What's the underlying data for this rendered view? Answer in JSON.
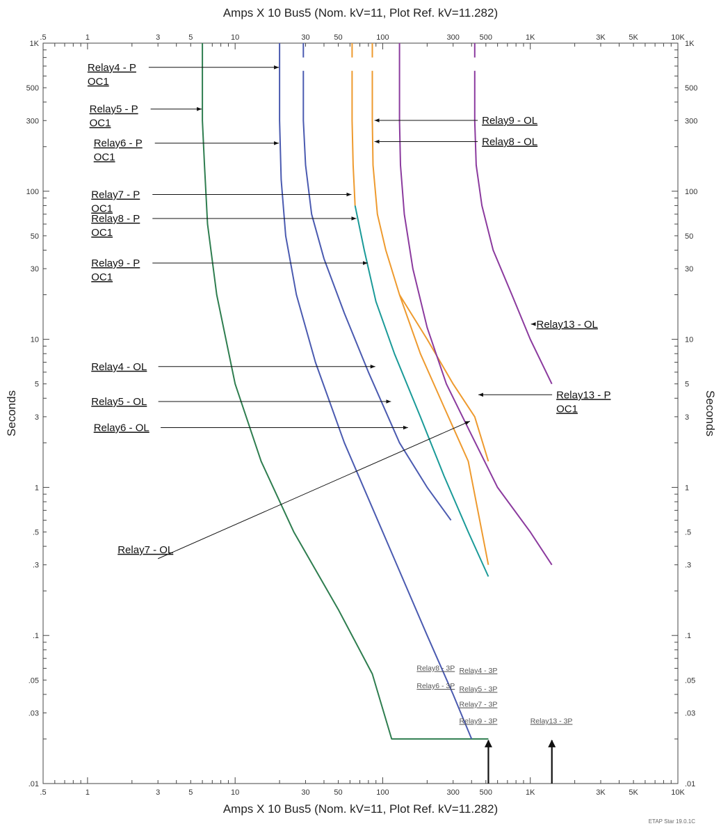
{
  "chart_data": {
    "type": "line",
    "title": "Amps  X  10   Bus5 (Nom. kV=11, Plot Ref. kV=11.282)",
    "xlabel": "Amps  X  10   Bus5 (Nom. kV=11, Plot Ref. kV=11.282)",
    "ylabel": "Seconds",
    "xscale": "log",
    "yscale": "log",
    "xlim": [
      0.5,
      10000
    ],
    "ylim": [
      0.01,
      1000
    ],
    "x_tick_labels": [
      {
        "v": 0.5,
        "t": ".5"
      },
      {
        "v": 1,
        "t": "1"
      },
      {
        "v": 3,
        "t": "3"
      },
      {
        "v": 5,
        "t": "5"
      },
      {
        "v": 10,
        "t": "10"
      },
      {
        "v": 30,
        "t": "30"
      },
      {
        "v": 50,
        "t": "50"
      },
      {
        "v": 100,
        "t": "100"
      },
      {
        "v": 300,
        "t": "300"
      },
      {
        "v": 500,
        "t": "500"
      },
      {
        "v": 1000,
        "t": "1K"
      },
      {
        "v": 3000,
        "t": "3K"
      },
      {
        "v": 5000,
        "t": "5K"
      },
      {
        "v": 10000,
        "t": "10K"
      }
    ],
    "y_tick_labels": [
      {
        "v": 1000,
        "t": "1K"
      },
      {
        "v": 500,
        "t": "500"
      },
      {
        "v": 300,
        "t": "300"
      },
      {
        "v": 100,
        "t": "100"
      },
      {
        "v": 50,
        "t": "50"
      },
      {
        "v": 30,
        "t": "30"
      },
      {
        "v": 10,
        "t": "10"
      },
      {
        "v": 5,
        "t": "5"
      },
      {
        "v": 3,
        "t": "3"
      },
      {
        "v": 1,
        "t": "1"
      },
      {
        "v": 0.5,
        "t": ".5"
      },
      {
        "v": 0.3,
        "t": ".3"
      },
      {
        "v": 0.1,
        "t": ".1"
      },
      {
        "v": 0.05,
        "t": ".05"
      },
      {
        "v": 0.03,
        "t": ".03"
      },
      {
        "v": 0.01,
        "t": ".01"
      }
    ],
    "grid": false,
    "colors": {
      "green": "#2e7d4f",
      "blue": "#4a5ab0",
      "teal": "#1a9a98",
      "orange": "#ee9a2e",
      "purple": "#8b3a9e",
      "frame": "#444444",
      "annotation": "#111111"
    },
    "series": [
      {
        "color": "green",
        "points": [
          [
            6,
            1000
          ],
          [
            6,
            300
          ],
          [
            6.2,
            150
          ],
          [
            6.5,
            60
          ],
          [
            7.5,
            20
          ],
          [
            10,
            5
          ],
          [
            15,
            1.5
          ],
          [
            25,
            0.5
          ],
          [
            50,
            0.15
          ],
          [
            85,
            0.055
          ],
          [
            115,
            0.02
          ],
          [
            520,
            0.02
          ]
        ]
      },
      {
        "color": "blue",
        "points": [
          [
            20,
            1000
          ],
          [
            20,
            300
          ],
          [
            20.5,
            120
          ],
          [
            22,
            50
          ],
          [
            26,
            20
          ],
          [
            35,
            7
          ],
          [
            55,
            2
          ],
          [
            100,
            0.5
          ],
          [
            200,
            0.1
          ],
          [
            300,
            0.04
          ],
          [
            400,
            0.02
          ]
        ]
      },
      {
        "color": "blue",
        "points": [
          [
            29,
            1000
          ],
          [
            29,
            800
          ]
        ]
      },
      {
        "color": "blue",
        "points": [
          [
            29,
            650
          ],
          [
            29,
            300
          ],
          [
            30,
            150
          ],
          [
            33,
            70
          ],
          [
            40,
            35
          ],
          [
            55,
            15
          ],
          [
            80,
            6
          ],
          [
            130,
            2
          ],
          [
            200,
            1
          ],
          [
            290,
            0.6
          ]
        ]
      },
      {
        "color": "teal",
        "points": [
          [
            65,
            80
          ],
          [
            75,
            40
          ],
          [
            90,
            18
          ],
          [
            120,
            8
          ],
          [
            180,
            3
          ],
          [
            260,
            1.2
          ],
          [
            380,
            0.5
          ],
          [
            520,
            0.25
          ]
        ]
      },
      {
        "color": "orange",
        "points": [
          [
            62,
            1000
          ],
          [
            62,
            800
          ]
        ]
      },
      {
        "color": "orange",
        "points": [
          [
            62,
            650
          ],
          [
            62,
            300
          ],
          [
            63,
            150
          ],
          [
            65,
            80
          ]
        ]
      },
      {
        "color": "orange",
        "points": [
          [
            85,
            1000
          ],
          [
            85,
            800
          ]
        ]
      },
      {
        "color": "orange",
        "points": [
          [
            85,
            650
          ],
          [
            85,
            300
          ],
          [
            86,
            150
          ],
          [
            92,
            70
          ],
          [
            105,
            40
          ],
          [
            130,
            20
          ],
          [
            180,
            8
          ],
          [
            260,
            3.5
          ],
          [
            380,
            1.5
          ],
          [
            520,
            0.3
          ]
        ]
      },
      {
        "color": "orange",
        "points": [
          [
            130,
            20
          ],
          [
            200,
            10
          ],
          [
            300,
            5
          ],
          [
            420,
            3
          ],
          [
            520,
            1.5
          ]
        ]
      },
      {
        "color": "purple",
        "points": [
          [
            130,
            1000
          ],
          [
            130,
            300
          ],
          [
            132,
            150
          ],
          [
            140,
            70
          ],
          [
            160,
            30
          ],
          [
            200,
            12
          ],
          [
            270,
            5
          ],
          [
            380,
            2.5
          ],
          [
            600,
            1
          ],
          [
            1000,
            0.5
          ],
          [
            1400,
            0.3
          ]
        ]
      },
      {
        "color": "purple",
        "points": [
          [
            420,
            1000
          ],
          [
            420,
            800
          ]
        ]
      },
      {
        "color": "purple",
        "points": [
          [
            420,
            650
          ],
          [
            420,
            300
          ],
          [
            430,
            150
          ],
          [
            470,
            80
          ],
          [
            560,
            40
          ],
          [
            750,
            20
          ],
          [
            1000,
            10
          ],
          [
            1400,
            5
          ]
        ]
      }
    ],
    "vertical_arrows": [
      {
        "x": 520,
        "y_from": 0.01,
        "y_to": 0.02
      },
      {
        "x": 1400,
        "y_from": 0.01,
        "y_to": 0.02
      }
    ],
    "annotations": [
      {
        "lines": [
          "Relay4 - P",
          "OC1"
        ],
        "side": "left",
        "text_x": 1.0,
        "y": 650,
        "target_x": 20
      },
      {
        "lines": [
          "Relay5 - P",
          "OC1"
        ],
        "side": "left",
        "text_x": 1.03,
        "y": 340,
        "target_x": 6
      },
      {
        "lines": [
          "Relay6 - P",
          "OC1"
        ],
        "side": "left",
        "text_x": 1.1,
        "y": 200,
        "target_x": 20
      },
      {
        "lines": [
          "Relay7 - P",
          "OC1"
        ],
        "side": "left",
        "text_x": 1.06,
        "y": 90,
        "target_x": 62
      },
      {
        "lines": [
          "Relay8 - P",
          "OC1"
        ],
        "side": "left",
        "text_x": 1.06,
        "y": 62,
        "target_x": 67
      },
      {
        "lines": [
          "Relay9 - P",
          "OC1"
        ],
        "side": "left",
        "text_x": 1.06,
        "y": 31,
        "target_x": 80
      },
      {
        "lines": [
          "Relay4 - OL"
        ],
        "side": "left",
        "text_x": 1.06,
        "y": 6.2,
        "target_x": 90
      },
      {
        "lines": [
          "Relay5 - OL"
        ],
        "side": "left",
        "text_x": 1.06,
        "y": 3.6,
        "target_x": 115
      },
      {
        "lines": [
          "Relay6 - OL"
        ],
        "side": "left",
        "text_x": 1.1,
        "y": 2.4,
        "target_x": 150
      },
      {
        "lines": [
          "Relay9 - OL"
        ],
        "side": "right",
        "text_x": 470,
        "y": 285,
        "target_x": 87
      },
      {
        "lines": [
          "Relay8 - OL"
        ],
        "side": "right",
        "text_x": 470,
        "y": 205,
        "target_x": 87
      },
      {
        "lines": [
          "Relay13 - OL"
        ],
        "side": "right",
        "text_x": 1100,
        "y": 12,
        "target_x": 1000
      },
      {
        "lines": [
          "Relay13 - P",
          "OC1"
        ],
        "side": "right",
        "text_x": 1500,
        "y": 4.0,
        "target_x": 440
      }
    ],
    "relay7_ol": {
      "label": "Relay7 - OL",
      "text_x": 1.6,
      "y": 0.36,
      "line_from": [
        3.0,
        0.33
      ],
      "line_to": [
        390,
        2.8
      ]
    },
    "small_labels": [
      {
        "text": "Relay8 - 3P",
        "x": 170,
        "y": 0.058
      },
      {
        "text": "Relay4 - 3P",
        "x": 330,
        "y": 0.056
      },
      {
        "text": "Relay6 - 3P",
        "x": 170,
        "y": 0.044
      },
      {
        "text": "Relay5 - 3P",
        "x": 330,
        "y": 0.042
      },
      {
        "text": "Relay7 - 3P",
        "x": 330,
        "y": 0.033
      },
      {
        "text": "Relay9 - 3P",
        "x": 330,
        "y": 0.0255
      },
      {
        "text": "Relay13 - 3P",
        "x": 1000,
        "y": 0.0255
      }
    ],
    "footer": "ETAP Star 19.0.1C"
  }
}
